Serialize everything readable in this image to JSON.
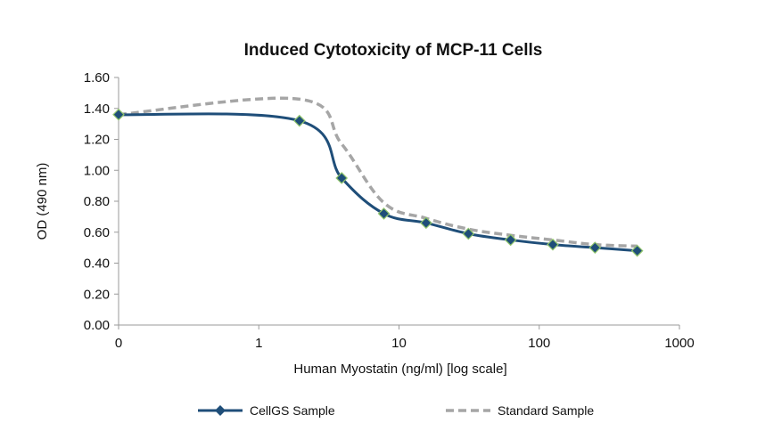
{
  "chart_data": {
    "type": "line",
    "title": "Induced Cytotoxicity of MCP-11 Cells",
    "xlabel": "Human Myostatin (ng/ml) [log scale]",
    "ylabel": "OD (490 nm)",
    "x_scale": "log",
    "x_ticks": [
      "0",
      "1",
      "10",
      "100",
      "1000"
    ],
    "x_tick_values": [
      0.1,
      1,
      10,
      100,
      1000
    ],
    "xlim": [
      0.1,
      1000
    ],
    "ylim": [
      0,
      1.6
    ],
    "y_ticks": [
      "0.00",
      "0.20",
      "0.40",
      "0.60",
      "0.80",
      "1.00",
      "1.20",
      "1.40",
      "1.60"
    ],
    "y_tick_values": [
      0,
      0.2,
      0.4,
      0.6,
      0.8,
      1.0,
      1.2,
      1.4,
      1.6
    ],
    "grid": false,
    "legend_position": "bottom",
    "series": [
      {
        "name": "CellGS Sample",
        "color": "#1f4e79",
        "style": "solid",
        "marker": "diamond",
        "x": [
          0.1,
          1.95,
          3.9,
          7.8,
          15.6,
          31.25,
          62.5,
          125,
          250,
          500
        ],
        "y": [
          1.36,
          1.32,
          0.95,
          0.72,
          0.66,
          0.59,
          0.55,
          0.52,
          0.5,
          0.48
        ]
      },
      {
        "name": "Standard Sample",
        "color": "#a6a6a6",
        "style": "dashed",
        "marker": "none",
        "x": [
          0.1,
          1.95,
          3.9,
          7.8,
          15.6,
          31.25,
          62.5,
          125,
          250,
          500
        ],
        "y": [
          1.36,
          1.46,
          1.17,
          0.79,
          0.69,
          0.62,
          0.58,
          0.55,
          0.52,
          0.51
        ]
      }
    ]
  }
}
